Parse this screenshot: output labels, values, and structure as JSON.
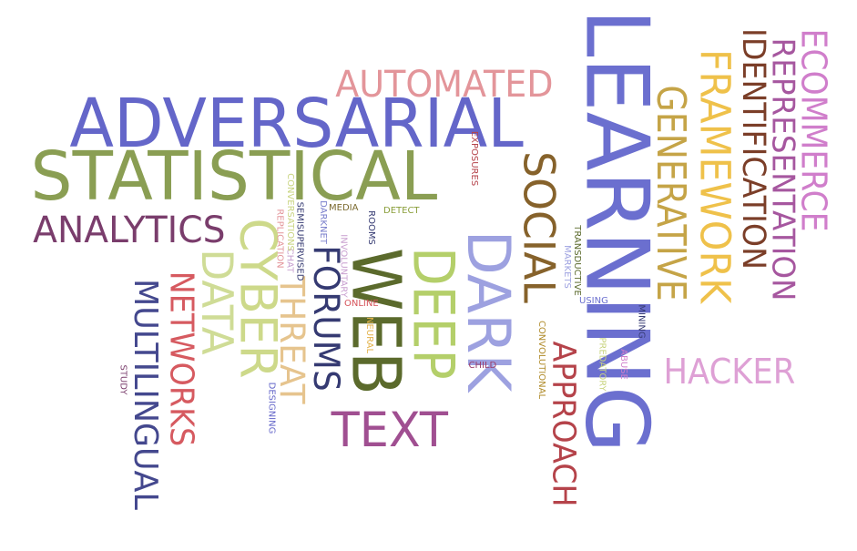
{
  "words": [
    {
      "id": "learning",
      "text": "LEARNING",
      "color": "#6b6fcf",
      "rotated": true
    },
    {
      "id": "adversarial",
      "text": "ADVERSARIAL",
      "color": "#6466c9",
      "rotated": false
    },
    {
      "id": "statistical",
      "text": "STATISTICAL",
      "color": "#8a9e53",
      "rotated": false
    },
    {
      "id": "automated",
      "text": "AUTOMATED",
      "color": "#e3959a",
      "rotated": false
    },
    {
      "id": "generative",
      "text": "GENERATIVE",
      "color": "#c5a447",
      "rotated": true
    },
    {
      "id": "framework",
      "text": "FRAMEWORK",
      "color": "#efc14a",
      "rotated": true
    },
    {
      "id": "identification",
      "text": "IDENTIFICATION",
      "color": "#7b3e28",
      "rotated": true
    },
    {
      "id": "representation",
      "text": "REPRESENTATION",
      "color": "#a6579f",
      "rotated": true
    },
    {
      "id": "ecommerce",
      "text": "ECOMMERCE",
      "color": "#d07ecb",
      "rotated": true
    },
    {
      "id": "social",
      "text": "SOCIAL",
      "color": "#86622b",
      "rotated": true
    },
    {
      "id": "dark",
      "text": "DARK",
      "color": "#9da1e0",
      "rotated": true
    },
    {
      "id": "deep",
      "text": "DEEP",
      "color": "#b4cf6a",
      "rotated": true
    },
    {
      "id": "web",
      "text": "WEB",
      "color": "#5b6a2c",
      "rotated": true
    },
    {
      "id": "forums",
      "text": "FORUMS",
      "color": "#353a72",
      "rotated": true
    },
    {
      "id": "threat",
      "text": "THREAT",
      "color": "#e6c48e",
      "rotated": true
    },
    {
      "id": "cyber",
      "text": "CYBER",
      "color": "#cdd98a",
      "rotated": true
    },
    {
      "id": "data",
      "text": "DATA",
      "color": "#cfdc96",
      "rotated": true
    },
    {
      "id": "networks",
      "text": "NETWORKS",
      "color": "#d65a60",
      "rotated": true
    },
    {
      "id": "multilingual",
      "text": "MULTILINGUAL",
      "color": "#44488e",
      "rotated": true
    },
    {
      "id": "analytics",
      "text": "ANALYTICS",
      "color": "#7a3d6c",
      "rotated": false
    },
    {
      "id": "text",
      "text": "TEXT",
      "color": "#a04f91",
      "rotated": false
    },
    {
      "id": "hacker",
      "text": "HACKER",
      "color": "#dea0d5",
      "rotated": false
    },
    {
      "id": "approach",
      "text": "APPROACH",
      "color": "#b5434a",
      "rotated": true
    },
    {
      "id": "exposures",
      "text": "EXPOSURES",
      "color": "#b5434a",
      "rotated": true
    },
    {
      "id": "media",
      "text": "MEDIA",
      "color": "#7b6a2f",
      "rotated": false
    },
    {
      "id": "detect",
      "text": "DETECT",
      "color": "#8a9e3a",
      "rotated": false
    },
    {
      "id": "online",
      "text": "ONLINE",
      "color": "#d6535a",
      "rotated": false
    },
    {
      "id": "child",
      "text": "CHILD",
      "color": "#9b3e6a",
      "rotated": false
    },
    {
      "id": "using",
      "text": "USING",
      "color": "#6b6fcf",
      "rotated": false
    },
    {
      "id": "semisupervised",
      "text": "SEMISUPERVISED",
      "color": "#353a72",
      "rotated": true
    },
    {
      "id": "darknet",
      "text": "DARKNET",
      "color": "#7a7fcc",
      "rotated": true
    },
    {
      "id": "rooms",
      "text": "ROOMS",
      "color": "#353a72",
      "rotated": true
    },
    {
      "id": "replication",
      "text": "REPLICATION",
      "color": "#e3959a",
      "rotated": true
    },
    {
      "id": "chat",
      "text": "CHAT",
      "color": "#c7a0d0",
      "rotated": true
    },
    {
      "id": "conversations",
      "text": "CONVERSATIONS",
      "color": "#c9d480",
      "rotated": true
    },
    {
      "id": "involuntary",
      "text": "INVOLUNTARY",
      "color": "#c9a0d0",
      "rotated": true
    },
    {
      "id": "neural",
      "text": "NEURAL",
      "color": "#e3b24a",
      "rotated": true
    },
    {
      "id": "convolutional",
      "text": "CONVOLUTIONAL",
      "color": "#b08b2a",
      "rotated": true
    },
    {
      "id": "markets",
      "text": "MARKETS",
      "color": "#9da1e0",
      "rotated": true
    },
    {
      "id": "transductive",
      "text": "TRANSDUCTIVE",
      "color": "#5b6a2c",
      "rotated": true
    },
    {
      "id": "mining",
      "text": "MINING",
      "color": "#353a72",
      "rotated": true
    },
    {
      "id": "predatory",
      "text": "PREDATORY",
      "color": "#c9d480",
      "rotated": true
    },
    {
      "id": "abuse",
      "text": "ABUSE",
      "color": "#d07ecb",
      "rotated": true
    },
    {
      "id": "designing",
      "text": "DESIGNING",
      "color": "#6466c9",
      "rotated": true
    },
    {
      "id": "study",
      "text": "STUDY",
      "color": "#7a3d6c",
      "rotated": true
    }
  ]
}
